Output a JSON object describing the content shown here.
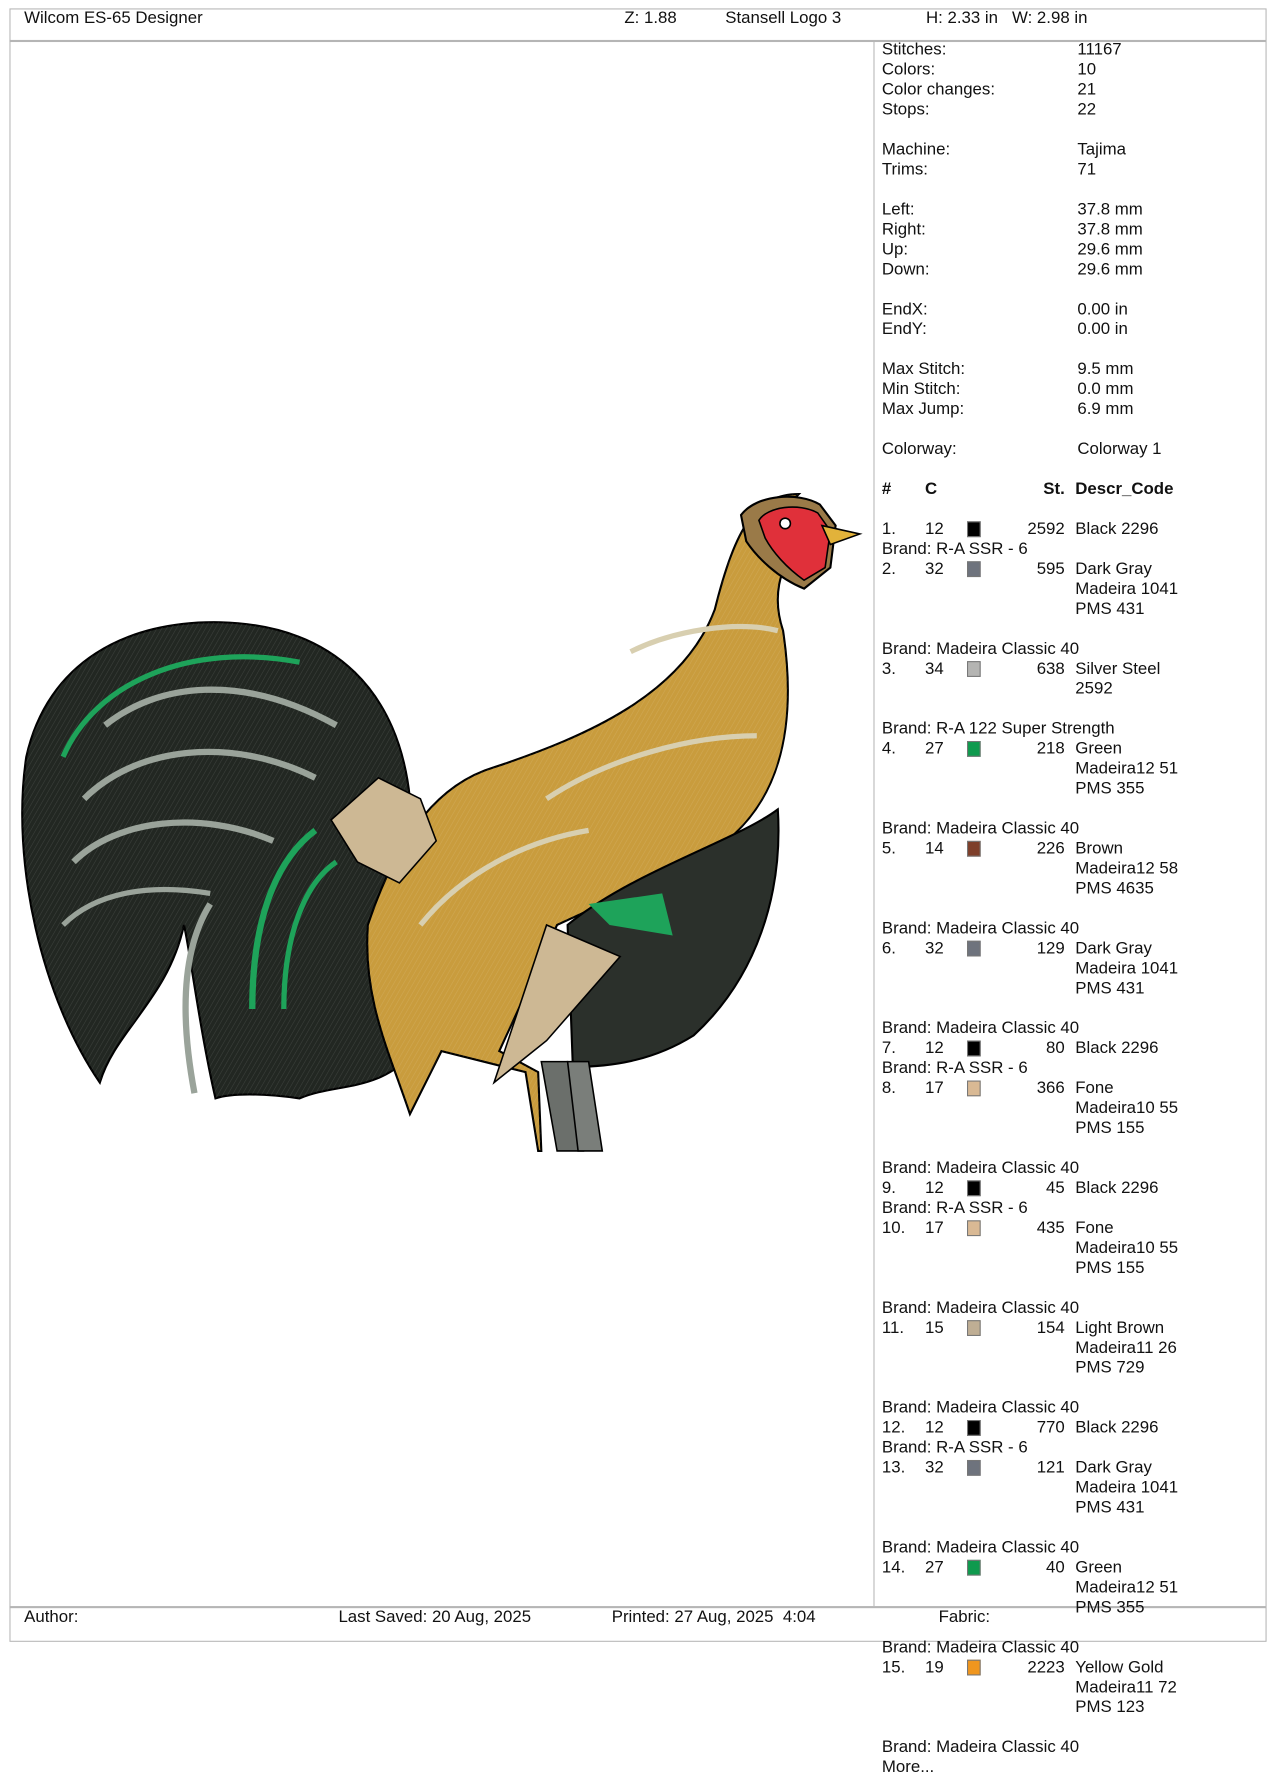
{
  "header": {
    "app_title": "Wilcom ES-65 Designer",
    "zoom": "Z: 1.88",
    "design_name": "Stansell Logo 3",
    "dimensions": "H: 2.33 in   W: 2.98 in"
  },
  "stats": [
    [
      {
        "k": "Stitches:",
        "v": "11167"
      },
      {
        "k": "Colors:",
        "v": "10"
      },
      {
        "k": "Color changes:",
        "v": "21"
      },
      {
        "k": "Stops:",
        "v": "22"
      }
    ],
    [
      {
        "k": "Machine:",
        "v": "Tajima"
      },
      {
        "k": "Trims:",
        "v": "71"
      }
    ],
    [
      {
        "k": "Left:",
        "v": "37.8 mm"
      },
      {
        "k": "Right:",
        "v": "37.8 mm"
      },
      {
        "k": "Up:",
        "v": "29.6 mm"
      },
      {
        "k": "Down:",
        "v": "29.6 mm"
      }
    ],
    [
      {
        "k": "EndX:",
        "v": "0.00 in"
      },
      {
        "k": "EndY:",
        "v": "0.00 in"
      }
    ],
    [
      {
        "k": "Max Stitch:",
        "v": "9.5 mm"
      },
      {
        "k": "Min Stitch:",
        "v": "0.0 mm"
      },
      {
        "k": "Max Jump:",
        "v": "6.9 mm"
      }
    ],
    [
      {
        "k": "Colorway:",
        "v": "Colorway 1"
      }
    ]
  ],
  "table": {
    "headers": {
      "num": "#",
      "c": "C",
      "st": "St.",
      "descr": "Descr_Code"
    },
    "rows": [
      {
        "num": "1.",
        "c": "12",
        "color": "#000000",
        "st": "2592",
        "descr": [
          "Black 2296"
        ],
        "brand": "Brand: R-A SSR - 6"
      },
      {
        "num": "2.",
        "c": "32",
        "color": "#6e737d",
        "st": "595",
        "descr": [
          "Dark Gray",
          "Madeira 1041",
          "PMS 431"
        ],
        "brand": "Brand: Madeira Classic 40"
      },
      {
        "num": "3.",
        "c": "34",
        "color": "#b4b4b2",
        "st": "638",
        "descr": [
          "Silver Steel",
          "2592"
        ],
        "brand": "Brand: R-A 122 Super Strength"
      },
      {
        "num": "4.",
        "c": "27",
        "color": "#0f9a4e",
        "st": "218",
        "descr": [
          "Green",
          "Madeira12 51",
          "PMS 355"
        ],
        "brand": "Brand: Madeira Classic 40"
      },
      {
        "num": "5.",
        "c": "14",
        "color": "#7e3f2a",
        "st": "226",
        "descr": [
          "Brown",
          "Madeira12 58",
          "PMS 4635"
        ],
        "brand": "Brand: Madeira Classic 40"
      },
      {
        "num": "6.",
        "c": "32",
        "color": "#6e737d",
        "st": "129",
        "descr": [
          "Dark Gray",
          "Madeira 1041",
          "PMS 431"
        ],
        "brand": "Brand: Madeira Classic 40"
      },
      {
        "num": "7.",
        "c": "12",
        "color": "#000000",
        "st": "80",
        "descr": [
          "Black 2296"
        ],
        "brand": "Brand: R-A SSR - 6"
      },
      {
        "num": "8.",
        "c": "17",
        "color": "#d9b994",
        "st": "366",
        "descr": [
          "Fone",
          "Madeira10 55",
          "PMS 155"
        ],
        "brand": "Brand: Madeira Classic 40"
      },
      {
        "num": "9.",
        "c": "12",
        "color": "#000000",
        "st": "45",
        "descr": [
          "Black 2296"
        ],
        "brand": "Brand: R-A SSR - 6"
      },
      {
        "num": "10.",
        "c": "17",
        "color": "#d9b994",
        "st": "435",
        "descr": [
          "Fone",
          "Madeira10 55",
          "PMS 155"
        ],
        "brand": "Brand: Madeira Classic 40"
      },
      {
        "num": "11.",
        "c": "15",
        "color": "#bfae94",
        "st": "154",
        "descr": [
          "Light Brown",
          "Madeira11 26",
          "PMS 729"
        ],
        "brand": "Brand: Madeira Classic 40"
      },
      {
        "num": "12.",
        "c": "12",
        "color": "#000000",
        "st": "770",
        "descr": [
          "Black 2296"
        ],
        "brand": "Brand: R-A SSR - 6"
      },
      {
        "num": "13.",
        "c": "32",
        "color": "#6e737d",
        "st": "121",
        "descr": [
          "Dark Gray",
          "Madeira 1041",
          "PMS 431"
        ],
        "brand": "Brand: Madeira Classic 40"
      },
      {
        "num": "14.",
        "c": "27",
        "color": "#0f9a4e",
        "st": "40",
        "descr": [
          "Green",
          "Madeira12 51",
          "PMS 355"
        ],
        "brand": "Brand: Madeira Classic 40"
      },
      {
        "num": "15.",
        "c": "19",
        "color": "#f0961e",
        "st": "2223",
        "descr": [
          "Yellow Gold",
          "Madeira11 72",
          "PMS 123"
        ],
        "brand": "Brand: Madeira Classic 40"
      }
    ],
    "more": "More..."
  },
  "footer": {
    "author": "Author:",
    "last_saved": "Last Saved: 20 Aug, 2025",
    "printed": "Printed: 27 Aug, 2025  4:04",
    "fabric": "Fabric:"
  }
}
